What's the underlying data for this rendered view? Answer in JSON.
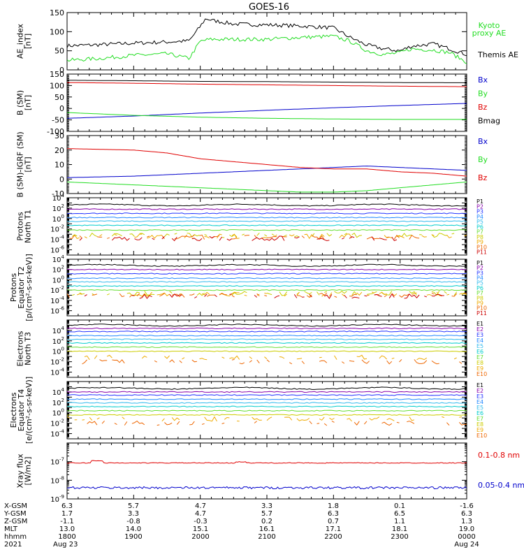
{
  "title": "GOES-16",
  "colors": {
    "black": "#000000",
    "red": "#e00000",
    "green": "#22dd22",
    "blue": "#0000cc",
    "P": [
      "#000000",
      "#8800aa",
      "#2233ff",
      "#2288ff",
      "#33bbee",
      "#00cccc",
      "#66dd33",
      "#cccc00",
      "#eeaa00",
      "#ee6600",
      "#cc0000"
    ],
    "E": [
      "#000000",
      "#8800aa",
      "#2233ff",
      "#2288ff",
      "#33bbee",
      "#00cccc",
      "#66dd33",
      "#cccc00",
      "#eeaa00",
      "#ee6600",
      "#cc0000"
    ]
  },
  "time_axis": {
    "rows": [
      {
        "label": "X-GSM",
        "values": [
          "6.3",
          "5.7",
          "4.7",
          "3.3",
          "1.8",
          "0.1",
          "-1.6"
        ]
      },
      {
        "label": "Y-GSM",
        "values": [
          "1.7",
          "3.3",
          "4.7",
          "5.7",
          "6.3",
          "6.5",
          "6.3"
        ]
      },
      {
        "label": "Z-GSM",
        "values": [
          "-1.1",
          "-0.8",
          "-0.3",
          "0.2",
          "0.7",
          "1.1",
          "1.3"
        ]
      },
      {
        "label": "MLT",
        "values": [
          "13.0",
          "14.0",
          "15.1",
          "16.1",
          "17.1",
          "18.1",
          "19.0"
        ]
      },
      {
        "label": "hhmm",
        "values": [
          "1800",
          "1900",
          "2000",
          "2100",
          "2200",
          "2300",
          "0000"
        ]
      },
      {
        "label": "2021",
        "values": [
          "Aug 23",
          "",
          "",
          "",
          "",
          "",
          "Aug 24"
        ]
      }
    ]
  },
  "chart_data": [
    {
      "type": "line",
      "id": "ae",
      "ylabel": [
        "AE_index",
        "[nT]"
      ],
      "ylim": [
        0,
        150
      ],
      "yticks": [
        0,
        50,
        100,
        150
      ],
      "yticklabels": [
        "0",
        "50",
        "100",
        "150"
      ],
      "legend": [
        {
          "text": "Kyoto",
          "color": "green"
        },
        {
          "text": "proxy AE",
          "color": "green"
        },
        {
          "text": "Themis AE",
          "color": "black"
        }
      ],
      "x": [
        "1800",
        "1830",
        "1900",
        "1930",
        "1950",
        "2000",
        "2005",
        "2010",
        "2030",
        "2100",
        "2130",
        "2200",
        "2215",
        "2230",
        "2245",
        "2300",
        "2310",
        "2330",
        "2345",
        "0000"
      ],
      "series": [
        {
          "name": "Themis AE",
          "color": "black",
          "values": [
            63,
            66,
            70,
            73,
            76,
            114,
            135,
            130,
            120,
            118,
            115,
            110,
            85,
            65,
            55,
            50,
            62,
            68,
            55,
            40
          ]
        },
        {
          "name": "Kyoto proxy AE",
          "color": "green",
          "values": [
            25,
            30,
            38,
            42,
            30,
            75,
            78,
            80,
            80,
            80,
            85,
            88,
            75,
            50,
            40,
            45,
            55,
            52,
            45,
            20
          ]
        }
      ]
    },
    {
      "type": "line",
      "id": "bsm",
      "ylabel": [
        "B (SM)",
        "[nT]"
      ],
      "ylim": [
        -100,
        150
      ],
      "yticks": [
        -100,
        -50,
        0,
        50,
        100,
        150
      ],
      "yticklabels": [
        "-100",
        "-50",
        "0",
        "50",
        "100",
        "150"
      ],
      "legend": [
        {
          "text": "Bx",
          "color": "blue"
        },
        {
          "text": "By",
          "color": "green"
        },
        {
          "text": "Bz",
          "color": "red"
        },
        {
          "text": "Bmag",
          "color": "black"
        }
      ],
      "x": [
        "1800",
        "1900",
        "2000",
        "2100",
        "2200",
        "2300",
        "0000"
      ],
      "series": [
        {
          "name": "Bx",
          "color": "blue",
          "values": [
            -43,
            -33,
            -20,
            -8,
            3,
            13,
            22
          ]
        },
        {
          "name": "By",
          "color": "green",
          "values": [
            -18,
            -30,
            -38,
            -43,
            -46,
            -48,
            -48
          ]
        },
        {
          "name": "Bz",
          "color": "red",
          "values": [
            113,
            110,
            106,
            103,
            100,
            97,
            95
          ]
        },
        {
          "name": "Bmag",
          "color": "black",
          "values": [
            123,
            121,
            118,
            117,
            115,
            113,
            112
          ]
        }
      ]
    },
    {
      "type": "line",
      "id": "bigrf",
      "ylabel": [
        "B (SM)-IGRF (SM)",
        "[nT]"
      ],
      "ylim": [
        -10,
        30
      ],
      "yticks": [
        -10,
        0,
        10,
        20,
        30
      ],
      "yticklabels": [
        "-10",
        "0",
        "10",
        "20",
        "30"
      ],
      "legend": [
        {
          "text": "Bx",
          "color": "blue"
        },
        {
          "text": "By",
          "color": "green"
        },
        {
          "text": "Bz",
          "color": "red"
        }
      ],
      "x": [
        "1800",
        "1830",
        "1900",
        "1930",
        "2000",
        "2030",
        "2100",
        "2130",
        "2200",
        "2230",
        "2300",
        "2330",
        "0000"
      ],
      "series": [
        {
          "name": "Bx",
          "color": "blue",
          "values": [
            1,
            1.5,
            2,
            3,
            4,
            5,
            6,
            7,
            8,
            9,
            8,
            7,
            6
          ]
        },
        {
          "name": "By",
          "color": "green",
          "values": [
            -2,
            -3,
            -4,
            -5,
            -6,
            -7,
            -8,
            -9,
            -9,
            -8,
            -6,
            -4,
            -2
          ]
        },
        {
          "name": "Bz",
          "color": "red",
          "values": [
            21,
            20.5,
            20,
            18,
            14,
            12,
            10,
            8,
            7,
            7,
            5,
            4,
            2
          ]
        }
      ]
    },
    {
      "type": "line",
      "id": "pn",
      "scale": "log",
      "ylabel": [
        "Protons",
        "North T1"
      ],
      "ylim_exp": [
        -7,
        4
      ],
      "ytick_exps": [
        4,
        2,
        0,
        -2,
        -4,
        -6
      ],
      "labels": [
        "P1",
        "P2",
        "P3",
        "P4",
        "P5",
        "P6",
        "P7",
        "P8",
        "P9",
        "P10",
        "P11"
      ],
      "levels_log10": [
        2.6,
        1.8,
        1.0,
        0.2,
        -0.5,
        -1.3,
        -2.2,
        -3.2,
        -3.4,
        -3.6,
        -3.8
      ]
    },
    {
      "type": "line",
      "id": "pe",
      "scale": "log",
      "ylabel": [
        "Protons",
        "Equator T2",
        "[p/(cm²-s-sr-keV)]"
      ],
      "ylim_exp": [
        -7,
        4
      ],
      "ytick_exps": [
        4,
        2,
        0,
        -2,
        -4,
        -6
      ],
      "labels": [
        "P1",
        "P2",
        "P3",
        "P4",
        "P5",
        "P6",
        "P7",
        "P8",
        "P9",
        "P10",
        "P11"
      ],
      "levels_log10": [
        2.8,
        2.0,
        1.2,
        0.3,
        -0.4,
        -1.2,
        -2.0,
        -2.6,
        -2.8,
        -3.0,
        -3.2
      ]
    },
    {
      "type": "line",
      "id": "en",
      "scale": "log",
      "ylabel": [
        "Electrons",
        "North T3"
      ],
      "ylim_exp": [
        -5,
        6
      ],
      "ytick_exps": [
        4,
        2,
        0,
        -2,
        -4
      ],
      "labels": [
        "E1",
        "E2",
        "E3",
        "E4",
        "E5",
        "E6",
        "E7",
        "E8",
        "E9",
        "E10"
      ],
      "levels_log10": [
        5.0,
        4.4,
        3.8,
        3.0,
        2.3,
        1.6,
        0.8,
        0.0,
        -1.2,
        -2.0
      ]
    },
    {
      "type": "line",
      "id": "ee",
      "scale": "log",
      "ylabel": [
        "Electrons",
        "Equator T4",
        "[e/(cm²-s-sr-keV)]"
      ],
      "ylim_exp": [
        -5,
        6
      ],
      "ytick_exps": [
        4,
        2,
        0,
        -2,
        -4
      ],
      "labels": [
        "E1",
        "E2",
        "E3",
        "E4",
        "E5",
        "E6",
        "E7",
        "E8",
        "E9",
        "E10"
      ],
      "levels_log10": [
        4.7,
        4.0,
        3.4,
        2.6,
        1.9,
        1.2,
        0.4,
        -0.4,
        -1.2,
        -2.0
      ]
    },
    {
      "type": "line",
      "id": "xray",
      "scale": "log",
      "ylabel": [
        "Xray flux",
        "[W/m2]"
      ],
      "ylim_exp": [
        -9,
        -6
      ],
      "ytick_exps": [
        -7,
        -8,
        -9
      ],
      "legend": [
        {
          "text": "0.1-0.8 nm",
          "color": "red"
        },
        {
          "text": "0.05-0.4 nm",
          "color": "blue"
        }
      ],
      "series": [
        {
          "name": "0.1-0.8 nm",
          "color": "red",
          "level_log10": -7.07
        },
        {
          "name": "0.05-0.4 nm",
          "color": "blue",
          "level_log10": -8.4
        }
      ]
    }
  ]
}
